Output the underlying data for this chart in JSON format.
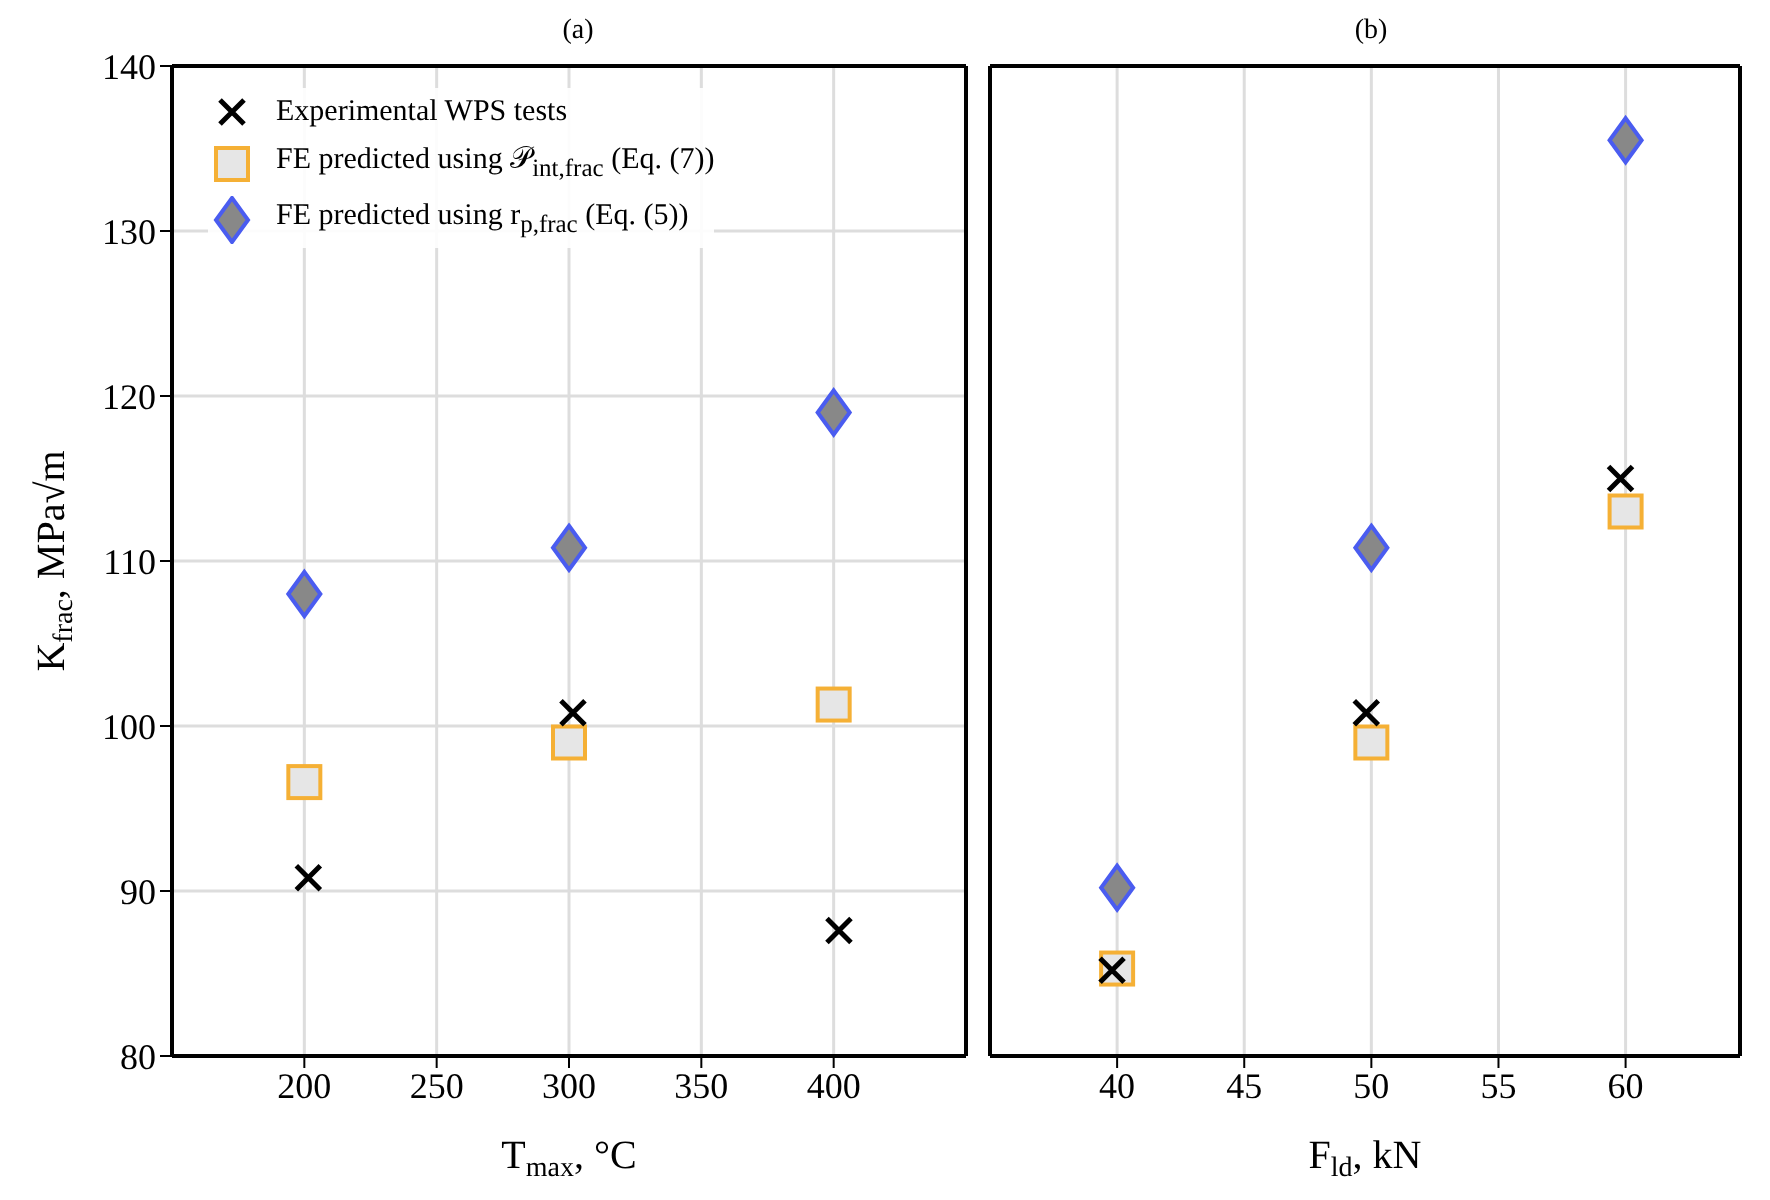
{
  "chart_data": [
    {
      "type": "scatter",
      "title": "(a)",
      "xlabel": "T$_{max}$, °C",
      "ylabel": "K$_{frac}$, MPa√m",
      "xlim": [
        150,
        450
      ],
      "xticks": [
        200,
        250,
        300,
        350,
        400
      ],
      "ylim": [
        80,
        140
      ],
      "yticks": [
        80,
        90,
        100,
        110,
        120,
        130,
        140
      ],
      "grid": true,
      "legend": "top left",
      "series": [
        {
          "name": "Experimental WPS tests",
          "color": "#000000",
          "marker": "cross",
          "x": [
            201.5,
            301.5,
            402
          ],
          "values": [
            90.8,
            100.8,
            87.6
          ]
        },
        {
          "name": "FE predicted using 𝒫$_{int,frac}$ (Eq. (7))",
          "color": "#f5b035",
          "marker": "square",
          "x": [
            200,
            300,
            400
          ],
          "values": [
            96.6,
            99,
            101.3
          ]
        },
        {
          "name": "FE predicted using r$_{p,frac}$ (Eq. (5))",
          "color": "#4a5cf0",
          "marker": "diamond",
          "x": [
            200,
            300,
            400
          ],
          "values": [
            108,
            110.8,
            119
          ]
        }
      ]
    },
    {
      "type": "scatter",
      "title": "(b)",
      "xlabel": "F$_{ld}$, kN",
      "xlim": [
        35,
        64.5
      ],
      "xticks": [
        40,
        45,
        50,
        55,
        60
      ],
      "ylim": [
        80,
        140
      ],
      "yticks": [
        80,
        90,
        100,
        110,
        120,
        130,
        140
      ],
      "grid": true,
      "tick_labels": "x",
      "series": [
        {
          "color": "#000000",
          "marker": "cross",
          "x": [
            39.8,
            49.8,
            59.8
          ],
          "values": [
            85.2,
            100.8,
            115
          ]
        },
        {
          "color": "#f5b035",
          "marker": "square",
          "x": [
            40,
            50,
            60
          ],
          "values": [
            85.3,
            99,
            113
          ]
        },
        {
          "color": "#4a5cf0",
          "marker": "diamond",
          "x": [
            40,
            50,
            60
          ],
          "values": [
            90.2,
            110.8,
            135.5
          ]
        }
      ]
    }
  ]
}
